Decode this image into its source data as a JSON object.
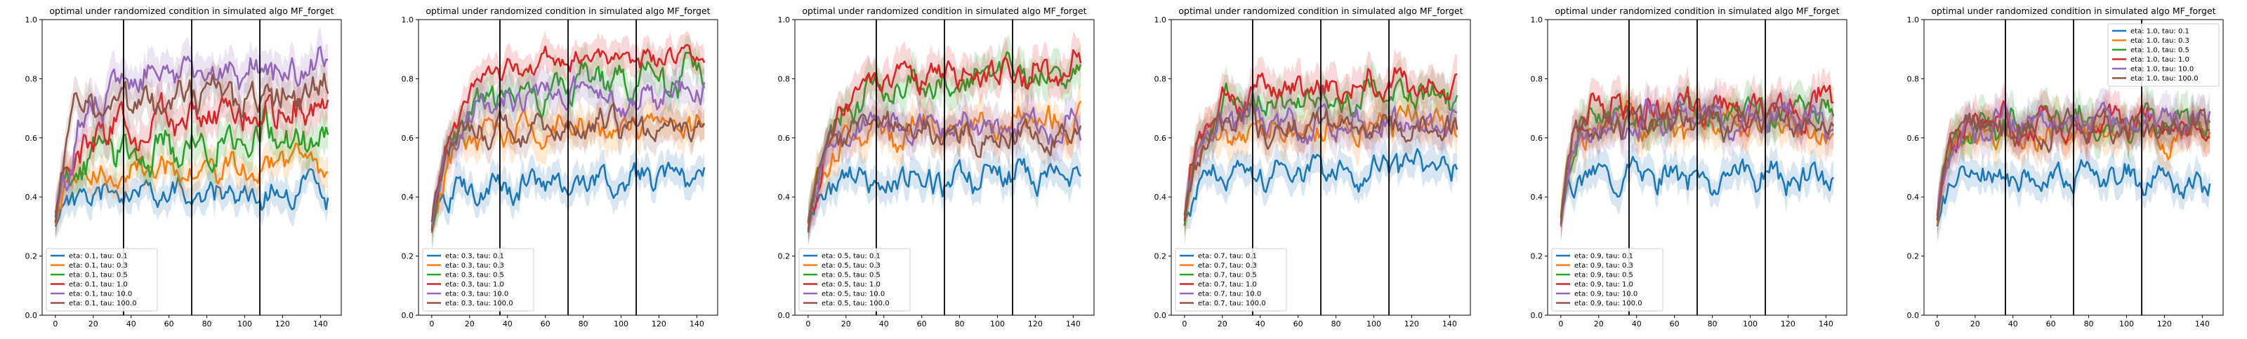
{
  "chart_data": [
    {
      "type": "line",
      "title": "optimal under randomized condition in simulated algo MF_forget",
      "xlim": [
        -7,
        151
      ],
      "ylim": [
        0,
        1.0
      ],
      "x_ticks": [
        0,
        20,
        40,
        60,
        80,
        100,
        120,
        140
      ],
      "y_ticks": [
        0.0,
        0.2,
        0.4,
        0.6,
        0.8,
        1.0
      ],
      "x_tick_labels": [
        "0",
        "20",
        "40",
        "60",
        "80",
        "100",
        "120",
        "140"
      ],
      "y_tick_labels": [
        "0.0",
        "0.2",
        "0.4",
        "0.6",
        "0.8",
        "1.0"
      ],
      "vlines": [
        36,
        72,
        108
      ],
      "legend_position": "lower-left",
      "series": [
        {
          "name": "eta: 0.1, tau: 0.1",
          "color": "#1f77b4",
          "start": 0.32,
          "plateau": 0.41,
          "rise": 6,
          "amp": 0.04,
          "band": 0.05,
          "seed": 11,
          "trend": 0.0
        },
        {
          "name": "eta: 0.1, tau: 0.3",
          "color": "#ff7f0e",
          "start": 0.32,
          "plateau": 0.46,
          "rise": 6,
          "amp": 0.04,
          "band": 0.05,
          "seed": 12,
          "trend": 0.06
        },
        {
          "name": "eta: 0.1, tau: 0.5",
          "color": "#2ca02c",
          "start": 0.32,
          "plateau": 0.55,
          "rise": 8,
          "amp": 0.05,
          "band": 0.06,
          "seed": 13,
          "trend": 0.06
        },
        {
          "name": "eta: 0.1, tau: 1.0",
          "color": "#d62728",
          "start": 0.32,
          "plateau": 0.62,
          "rise": 8,
          "amp": 0.05,
          "band": 0.06,
          "seed": 14,
          "trend": 0.08
        },
        {
          "name": "eta: 0.1, tau: 10.0",
          "color": "#9467bd",
          "start": 0.32,
          "plateau": 0.8,
          "rise": 12,
          "amp": 0.05,
          "band": 0.06,
          "seed": 15,
          "trend": 0.04
        },
        {
          "name": "eta: 0.1, tau: 100.0",
          "color": "#8c564b",
          "start": 0.32,
          "plateau": 0.73,
          "rise": 6,
          "amp": 0.05,
          "band": 0.06,
          "seed": 16,
          "trend": 0.0
        }
      ]
    },
    {
      "type": "line",
      "title": "optimal under randomized condition in simulated algo MF_forget",
      "xlim": [
        -7,
        151
      ],
      "ylim": [
        0,
        1.0
      ],
      "x_ticks": [
        0,
        20,
        40,
        60,
        80,
        100,
        120,
        140
      ],
      "y_ticks": [
        0.0,
        0.2,
        0.4,
        0.6,
        0.8,
        1.0
      ],
      "x_tick_labels": [
        "0",
        "20",
        "40",
        "60",
        "80",
        "100",
        "120",
        "140"
      ],
      "y_tick_labels": [
        "0.0",
        "0.2",
        "0.4",
        "0.6",
        "0.8",
        "1.0"
      ],
      "vlines": [
        36,
        72,
        108
      ],
      "legend_position": "lower-left",
      "series": [
        {
          "name": "eta: 0.3, tau: 0.1",
          "color": "#1f77b4",
          "start": 0.3,
          "plateau": 0.44,
          "rise": 6,
          "amp": 0.04,
          "band": 0.05,
          "seed": 21,
          "trend": 0.02
        },
        {
          "name": "eta: 0.3, tau: 0.3",
          "color": "#ff7f0e",
          "start": 0.3,
          "plateau": 0.62,
          "rise": 8,
          "amp": 0.04,
          "band": 0.06,
          "seed": 22,
          "trend": 0.02
        },
        {
          "name": "eta: 0.3, tau: 0.5",
          "color": "#2ca02c",
          "start": 0.3,
          "plateau": 0.77,
          "rise": 14,
          "amp": 0.05,
          "band": 0.06,
          "seed": 23,
          "trend": 0.04
        },
        {
          "name": "eta: 0.3, tau: 1.0",
          "color": "#d62728",
          "start": 0.3,
          "plateau": 0.84,
          "rise": 12,
          "amp": 0.03,
          "band": 0.05,
          "seed": 24,
          "trend": 0.04
        },
        {
          "name": "eta: 0.3, tau: 10.0",
          "color": "#9467bd",
          "start": 0.3,
          "plateau": 0.74,
          "rise": 10,
          "amp": 0.04,
          "band": 0.06,
          "seed": 25,
          "trend": 0.0
        },
        {
          "name": "eta: 0.3, tau: 100.0",
          "color": "#8c564b",
          "start": 0.3,
          "plateau": 0.64,
          "rise": 6,
          "amp": 0.04,
          "band": 0.05,
          "seed": 26,
          "trend": 0.0
        }
      ]
    },
    {
      "type": "line",
      "title": "optimal under randomized condition in simulated algo MF_forget",
      "xlim": [
        -7,
        151
      ],
      "ylim": [
        0,
        1.0
      ],
      "x_ticks": [
        0,
        20,
        40,
        60,
        80,
        100,
        120,
        140
      ],
      "y_ticks": [
        0.0,
        0.2,
        0.4,
        0.6,
        0.8,
        1.0
      ],
      "x_tick_labels": [
        "0",
        "20",
        "40",
        "60",
        "80",
        "100",
        "120",
        "140"
      ],
      "y_tick_labels": [
        "0.0",
        "0.2",
        "0.4",
        "0.6",
        "0.8",
        "1.0"
      ],
      "vlines": [
        36,
        72,
        108
      ],
      "legend_position": "lower-left",
      "series": [
        {
          "name": "eta: 0.5, tau: 0.1",
          "color": "#1f77b4",
          "start": 0.3,
          "plateau": 0.45,
          "rise": 6,
          "amp": 0.04,
          "band": 0.05,
          "seed": 31,
          "trend": 0.03
        },
        {
          "name": "eta: 0.5, tau: 0.3",
          "color": "#ff7f0e",
          "start": 0.3,
          "plateau": 0.63,
          "rise": 8,
          "amp": 0.04,
          "band": 0.06,
          "seed": 32,
          "trend": 0.02
        },
        {
          "name": "eta: 0.5, tau: 0.5",
          "color": "#2ca02c",
          "start": 0.3,
          "plateau": 0.78,
          "rise": 12,
          "amp": 0.04,
          "band": 0.06,
          "seed": 33,
          "trend": 0.04
        },
        {
          "name": "eta: 0.5, tau: 1.0",
          "color": "#d62728",
          "start": 0.3,
          "plateau": 0.81,
          "rise": 12,
          "amp": 0.04,
          "band": 0.06,
          "seed": 34,
          "trend": 0.03
        },
        {
          "name": "eta: 0.5, tau: 10.0",
          "color": "#9467bd",
          "start": 0.3,
          "plateau": 0.64,
          "rise": 6,
          "amp": 0.04,
          "band": 0.06,
          "seed": 35,
          "trend": 0.0
        },
        {
          "name": "eta: 0.5, tau: 100.0",
          "color": "#8c564b",
          "start": 0.3,
          "plateau": 0.62,
          "rise": 6,
          "amp": 0.04,
          "band": 0.05,
          "seed": 36,
          "trend": 0.0
        }
      ]
    },
    {
      "type": "line",
      "title": "optimal under randomized condition in simulated algo MF_forget",
      "xlim": [
        -7,
        151
      ],
      "ylim": [
        0,
        1.0
      ],
      "x_ticks": [
        0,
        20,
        40,
        60,
        80,
        100,
        120,
        140
      ],
      "y_ticks": [
        0.0,
        0.2,
        0.4,
        0.6,
        0.8,
        1.0
      ],
      "x_tick_labels": [
        "0",
        "20",
        "40",
        "60",
        "80",
        "100",
        "120",
        "140"
      ],
      "y_tick_labels": [
        "0.0",
        "0.2",
        "0.4",
        "0.6",
        "0.8",
        "1.0"
      ],
      "vlines": [
        36,
        72,
        108
      ],
      "legend_position": "lower-left",
      "series": [
        {
          "name": "eta: 0.7, tau: 0.1",
          "color": "#1f77b4",
          "start": 0.32,
          "plateau": 0.47,
          "rise": 6,
          "amp": 0.04,
          "band": 0.05,
          "seed": 41,
          "trend": 0.02
        },
        {
          "name": "eta: 0.7, tau: 0.3",
          "color": "#ff7f0e",
          "start": 0.32,
          "plateau": 0.63,
          "rise": 6,
          "amp": 0.04,
          "band": 0.06,
          "seed": 42,
          "trend": 0.02
        },
        {
          "name": "eta: 0.7, tau: 0.5",
          "color": "#2ca02c",
          "start": 0.32,
          "plateau": 0.72,
          "rise": 8,
          "amp": 0.04,
          "band": 0.06,
          "seed": 43,
          "trend": 0.03
        },
        {
          "name": "eta: 0.7, tau: 1.0",
          "color": "#d62728",
          "start": 0.32,
          "plateau": 0.76,
          "rise": 8,
          "amp": 0.04,
          "band": 0.06,
          "seed": 44,
          "trend": 0.03
        },
        {
          "name": "eta: 0.7, tau: 10.0",
          "color": "#9467bd",
          "start": 0.32,
          "plateau": 0.65,
          "rise": 6,
          "amp": 0.04,
          "band": 0.06,
          "seed": 45,
          "trend": 0.0
        },
        {
          "name": "eta: 0.7, tau: 100.0",
          "color": "#8c564b",
          "start": 0.32,
          "plateau": 0.64,
          "rise": 6,
          "amp": 0.04,
          "band": 0.05,
          "seed": 46,
          "trend": 0.0
        }
      ]
    },
    {
      "type": "line",
      "title": "optimal under randomized condition in simulated algo MF_forget",
      "xlim": [
        -7,
        151
      ],
      "ylim": [
        0,
        1.0
      ],
      "x_ticks": [
        0,
        20,
        40,
        60,
        80,
        100,
        120,
        140
      ],
      "y_ticks": [
        0.0,
        0.2,
        0.4,
        0.6,
        0.8,
        1.0
      ],
      "x_tick_labels": [
        "0",
        "20",
        "40",
        "60",
        "80",
        "100",
        "120",
        "140"
      ],
      "y_tick_labels": [
        "0.0",
        "0.2",
        "0.4",
        "0.6",
        "0.8",
        "1.0"
      ],
      "vlines": [
        36,
        72,
        108
      ],
      "legend_position": "lower-left",
      "series": [
        {
          "name": "eta: 0.9, tau: 0.1",
          "color": "#1f77b4",
          "start": 0.32,
          "plateau": 0.47,
          "rise": 5,
          "amp": 0.04,
          "band": 0.05,
          "seed": 51,
          "trend": 0.0
        },
        {
          "name": "eta: 0.9, tau: 0.3",
          "color": "#ff7f0e",
          "start": 0.32,
          "plateau": 0.64,
          "rise": 5,
          "amp": 0.04,
          "band": 0.06,
          "seed": 52,
          "trend": 0.0
        },
        {
          "name": "eta: 0.9, tau: 0.5",
          "color": "#2ca02c",
          "start": 0.32,
          "plateau": 0.68,
          "rise": 5,
          "amp": 0.04,
          "band": 0.06,
          "seed": 53,
          "trend": 0.0
        },
        {
          "name": "eta: 0.9, tau: 1.0",
          "color": "#d62728",
          "start": 0.32,
          "plateau": 0.7,
          "rise": 5,
          "amp": 0.05,
          "band": 0.06,
          "seed": 54,
          "trend": 0.0
        },
        {
          "name": "eta: 0.9, tau: 10.0",
          "color": "#9467bd",
          "start": 0.32,
          "plateau": 0.66,
          "rise": 5,
          "amp": 0.04,
          "band": 0.06,
          "seed": 55,
          "trend": 0.0
        },
        {
          "name": "eta: 0.9, tau: 100.0",
          "color": "#8c564b",
          "start": 0.32,
          "plateau": 0.65,
          "rise": 5,
          "amp": 0.04,
          "band": 0.05,
          "seed": 56,
          "trend": 0.0
        }
      ]
    },
    {
      "type": "line",
      "title": "optimal under randomized condition in simulated algo MF_forget",
      "xlim": [
        -7,
        151
      ],
      "ylim": [
        0,
        1.0
      ],
      "x_ticks": [
        0,
        20,
        40,
        60,
        80,
        100,
        120,
        140
      ],
      "y_ticks": [
        0.0,
        0.2,
        0.4,
        0.6,
        0.8,
        1.0
      ],
      "x_tick_labels": [
        "0",
        "20",
        "40",
        "60",
        "80",
        "100",
        "120",
        "140"
      ],
      "y_tick_labels": [
        "0.0",
        "0.2",
        "0.4",
        "0.6",
        "0.8",
        "1.0"
      ],
      "vlines": [
        36,
        72,
        108
      ],
      "legend_position": "upper-right",
      "series": [
        {
          "name": "eta: 1.0, tau: 0.1",
          "color": "#1f77b4",
          "start": 0.32,
          "plateau": 0.46,
          "rise": 5,
          "amp": 0.04,
          "band": 0.05,
          "seed": 61,
          "trend": 0.0
        },
        {
          "name": "eta: 1.0, tau: 0.3",
          "color": "#ff7f0e",
          "start": 0.32,
          "plateau": 0.61,
          "rise": 5,
          "amp": 0.04,
          "band": 0.06,
          "seed": 62,
          "trend": 0.0
        },
        {
          "name": "eta: 1.0, tau: 0.5",
          "color": "#2ca02c",
          "start": 0.32,
          "plateau": 0.64,
          "rise": 5,
          "amp": 0.04,
          "band": 0.06,
          "seed": 63,
          "trend": 0.0
        },
        {
          "name": "eta: 1.0, tau: 1.0",
          "color": "#d62728",
          "start": 0.32,
          "plateau": 0.65,
          "rise": 5,
          "amp": 0.04,
          "band": 0.06,
          "seed": 64,
          "trend": 0.0
        },
        {
          "name": "eta: 1.0, tau: 10.0",
          "color": "#9467bd",
          "start": 0.32,
          "plateau": 0.66,
          "rise": 5,
          "amp": 0.04,
          "band": 0.06,
          "seed": 65,
          "trend": 0.0
        },
        {
          "name": "eta: 1.0, tau: 100.0",
          "color": "#8c564b",
          "start": 0.32,
          "plateau": 0.64,
          "rise": 5,
          "amp": 0.04,
          "band": 0.05,
          "seed": 66,
          "trend": 0.0
        }
      ]
    }
  ]
}
